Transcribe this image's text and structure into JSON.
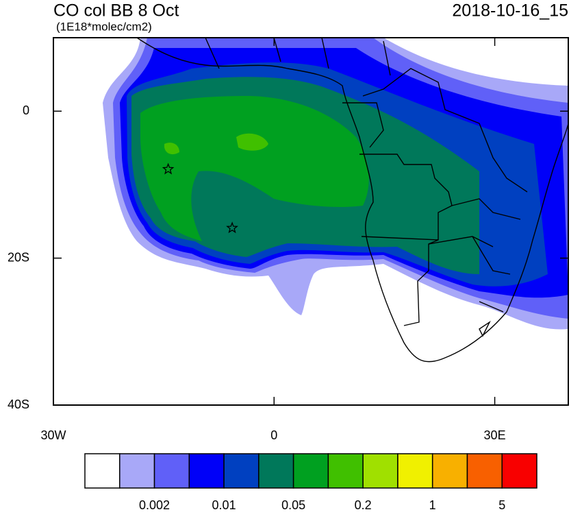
{
  "header": {
    "title": "CO col BB 8 Oct",
    "units": "(1E18*molec/cm2)",
    "date": "2018-10-16_15"
  },
  "map": {
    "xlim": [
      -30,
      40
    ],
    "ylim": [
      -40,
      10
    ],
    "xticks": [
      {
        "value": -30,
        "label": "30W"
      },
      0,
      {
        "value": 30,
        "label": "30E"
      }
    ],
    "yticks": [
      0,
      {
        "value": -20,
        "label": "20S"
      },
      {
        "value": -40,
        "label": "40S"
      }
    ],
    "markers": [
      {
        "lon": -14.4,
        "lat": -7.9
      },
      {
        "lon": -5.7,
        "lat": -15.9
      }
    ]
  },
  "colorbar": {
    "colors": [
      "#ffffff",
      "#a8a8f8",
      "#6060f8",
      "#0000f8",
      "#0040c0",
      "#00785a",
      "#00a020",
      "#40c000",
      "#a0e000",
      "#f0f000",
      "#f8b000",
      "#f86000",
      "#f80000"
    ],
    "labels": [
      0.002,
      0.01,
      0.05,
      0.2,
      1,
      5
    ]
  }
}
